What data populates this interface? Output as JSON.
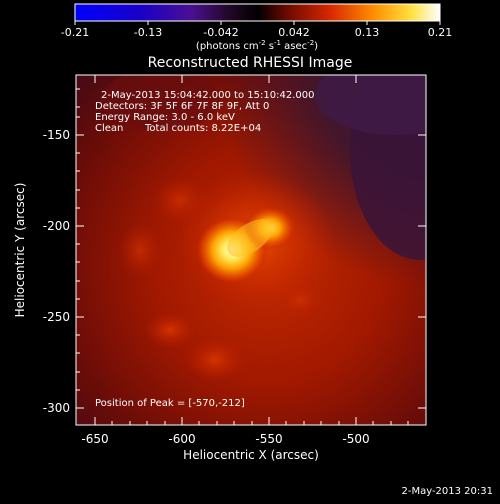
{
  "colorbar": {
    "ticks": [
      "-0.21",
      "-0.13",
      "-0.042",
      "0.042",
      "0.13",
      "0.21"
    ],
    "units_prefix": "(photons cm",
    "units_exp1": "-2",
    "units_mid": " s",
    "units_exp2": "-1",
    "units_mid2": " asec",
    "units_exp3": "-2",
    "units_suffix": ")"
  },
  "title": "Reconstructed RHESSI Image",
  "info": {
    "time_range": "2-May-2013 15:04:42.000 to 15:10:42.000",
    "detectors": "Detectors: 3F 5F 6F 7F 8F 9F, Att 0",
    "energy_range": "Energy Range: 3.0 - 6.0 keV",
    "method": "Clean",
    "total_counts": "Total counts: 8.22E+04"
  },
  "peak_label": "Position of Peak = [-570,-212]",
  "axes": {
    "xlabel": "Heliocentric X (arcsec)",
    "ylabel": "Heliocentric Y (arcsec)",
    "x_ticks": [
      "-650",
      "-600",
      "-550",
      "-500"
    ],
    "y_ticks": [
      "-150",
      "-200",
      "-250",
      "-300"
    ]
  },
  "timestamp": "2-May-2013 20:31",
  "colors": {
    "background": "#000000",
    "flare_core": "#ffffd0",
    "flare_mid": "#ffb000",
    "emission": "#c82800",
    "corner_cool": "#3a1a40"
  }
}
